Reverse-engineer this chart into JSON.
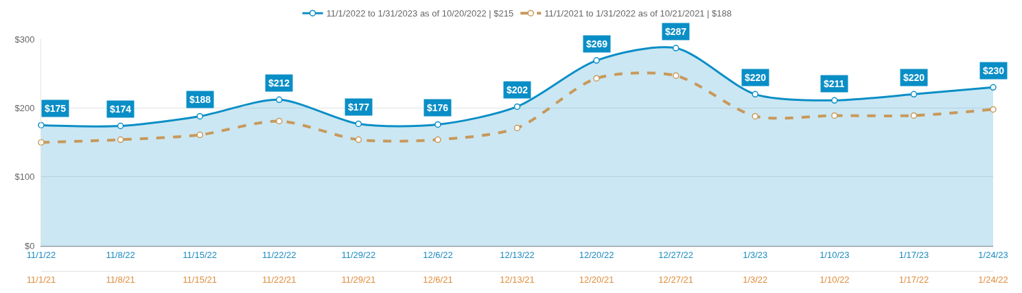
{
  "chart_data": {
    "type": "area",
    "x": [
      "2022-11-01",
      "2022-11-08",
      "2022-11-15",
      "2022-11-22",
      "2022-11-29",
      "2022-12-06",
      "2022-12-13",
      "2022-12-20",
      "2022-12-27",
      "2023-01-03",
      "2023-01-10",
      "2023-01-17",
      "2023-01-24"
    ],
    "xlim": [
      "2022-11-01",
      "2023-01-24"
    ],
    "xticks": [
      {
        "value": "2022-11-01",
        "label": "11/1/22"
      },
      {
        "value": "2022-11-08",
        "label": "11/8/22"
      },
      {
        "value": "2022-11-15",
        "label": "11/15/22"
      },
      {
        "value": "2022-11-22",
        "label": "11/22/22"
      },
      {
        "value": "2022-11-29",
        "label": "11/29/22"
      },
      {
        "value": "2022-12-06",
        "label": "12/6/22"
      },
      {
        "value": "2022-12-13",
        "label": "12/13/22"
      },
      {
        "value": "2022-12-20",
        "label": "12/20/22"
      },
      {
        "value": "2022-12-27",
        "label": "12/27/22"
      },
      {
        "value": "2023-01-03",
        "label": "1/3/23"
      },
      {
        "value": "2023-01-10",
        "label": "1/10/23"
      },
      {
        "value": "2023-01-17",
        "label": "1/17/23"
      },
      {
        "value": "2023-01-24",
        "label": "1/24/23"
      }
    ],
    "x2lim": [
      "2021-11-01",
      "2022-01-24"
    ],
    "x2ticks": [
      {
        "value": "2021-11-01",
        "label": "11/1/21"
      },
      {
        "value": "2021-11-08",
        "label": "11/8/21"
      },
      {
        "value": "2021-11-15",
        "label": "11/15/21"
      },
      {
        "value": "2021-11-22",
        "label": "11/22/21"
      },
      {
        "value": "2021-11-29",
        "label": "11/29/21"
      },
      {
        "value": "2021-12-06",
        "label": "12/6/21"
      },
      {
        "value": "2021-12-13",
        "label": "12/13/21"
      },
      {
        "value": "2021-12-20",
        "label": "12/20/21"
      },
      {
        "value": "2021-12-27",
        "label": "12/27/21"
      },
      {
        "value": "2022-01-03",
        "label": "1/3/22"
      },
      {
        "value": "2022-01-10",
        "label": "1/10/22"
      },
      {
        "value": "2022-01-17",
        "label": "1/17/22"
      },
      {
        "value": "2022-01-24",
        "label": "1/24/22"
      }
    ],
    "series": [
      {
        "name": "11/1/2022 to 1/31/2023 as of 10/20/2022 | $215",
        "color": "#0a8ec6",
        "line_style": "solid",
        "values": [
          175,
          174,
          188,
          212,
          177,
          176,
          202,
          269,
          287,
          220,
          211,
          220,
          230
        ],
        "value_labels": [
          "$175",
          "$174",
          "$188",
          "$212",
          "$177",
          "$176",
          "$202",
          "$269",
          "$287",
          "$220",
          "$211",
          "$220",
          "$230"
        ]
      },
      {
        "name": "11/1/2021 to 1/31/2022 as of 10/21/2021 | $188",
        "type": "line",
        "axis": "x2",
        "color": "#c8995a",
        "line_style": "dashed",
        "x": [
          "2021-11-01",
          "2021-11-08",
          "2021-11-15",
          "2021-11-22",
          "2021-11-29",
          "2021-12-06",
          "2021-12-13",
          "2021-12-20",
          "2021-12-27",
          "2022-01-03",
          "2022-01-10",
          "2022-01-17",
          "2022-01-24"
        ],
        "values": [
          150,
          154,
          161,
          181,
          154,
          154,
          171,
          243,
          247,
          188,
          189,
          189,
          198
        ]
      }
    ],
    "ylim": [
      0,
      300
    ],
    "yticks": [
      {
        "value": 0,
        "label": "$0"
      },
      {
        "value": 100,
        "label": "$100"
      },
      {
        "value": 200,
        "label": "$200"
      },
      {
        "value": 300,
        "label": "$300"
      }
    ],
    "grid": "y",
    "legend": "top",
    "marker": "circle"
  }
}
